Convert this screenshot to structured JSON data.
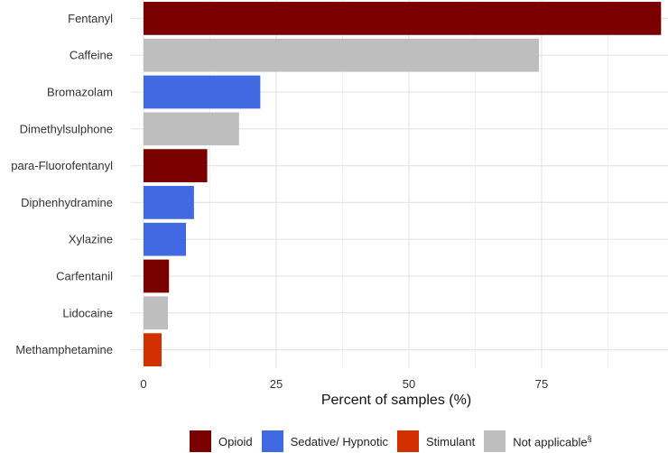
{
  "chart_data": {
    "type": "bar",
    "orientation": "horizontal",
    "categories": [
      "Fentanyl",
      "Caffeine",
      "Bromazolam",
      "Dimethylsulphone",
      "para-Fluorofentanyl",
      "Diphenhydramine",
      "Xylazine",
      "Carfentanil",
      "Lidocaine",
      "Methamphetamine"
    ],
    "values": [
      97.5,
      74.5,
      22.0,
      18.0,
      12.0,
      9.5,
      8.0,
      4.8,
      4.6,
      3.4
    ],
    "groups": [
      "Opioid",
      "Not applicable",
      "Sedative/ Hypnotic",
      "Not applicable",
      "Opioid",
      "Sedative/ Hypnotic",
      "Sedative/ Hypnotic",
      "Opioid",
      "Not applicable",
      "Stimulant"
    ],
    "xlabel": "Percent of samples (%)",
    "ylabel": "",
    "xlim": [
      0,
      100
    ],
    "xticks": [
      0,
      25,
      50,
      75
    ],
    "grid": true,
    "legend_position": "bottom",
    "legend": [
      {
        "name": "Opioid",
        "sup": "",
        "color": "#7a0000"
      },
      {
        "name": "Sedative/ Hypnotic",
        "sup": "",
        "color": "#4169e1"
      },
      {
        "name": "Stimulant",
        "sup": "",
        "color": "#d33000"
      },
      {
        "name": "Not applicable",
        "sup": "§",
        "color": "#bebebe"
      }
    ]
  }
}
